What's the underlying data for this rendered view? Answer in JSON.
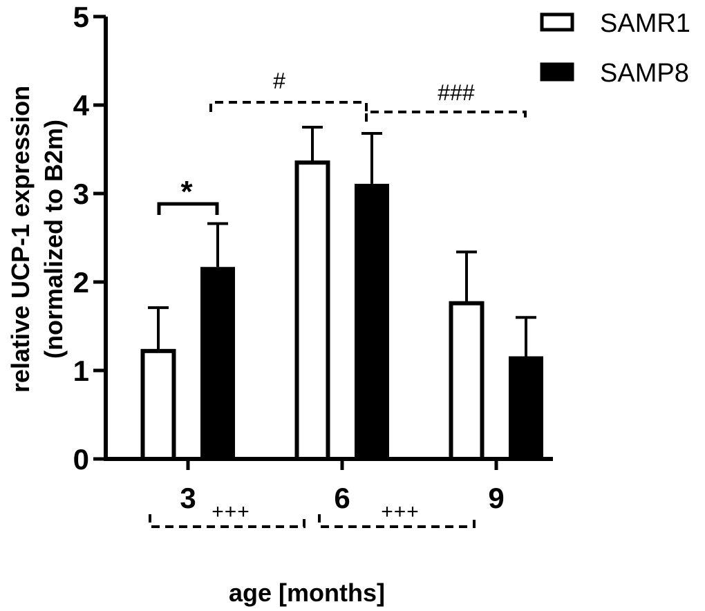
{
  "chart_data": {
    "type": "bar",
    "title": "",
    "xlabel": "age [months]",
    "ylabel": "relative UCP-1 expression",
    "ylabel_line2": "(normalized to B2m)",
    "categories": [
      "3",
      "6",
      "9"
    ],
    "ylim": [
      0,
      5
    ],
    "yticks": [
      "0",
      "1",
      "2",
      "3",
      "4",
      "5"
    ],
    "grid": false,
    "legend_position": "top-right",
    "series": [
      {
        "name": "SAMR1",
        "fill": "#ffffff",
        "stroke": "#000000",
        "values": [
          1.22,
          3.35,
          1.76
        ],
        "errors": [
          0.49,
          0.4,
          0.58
        ]
      },
      {
        "name": "SAMP8",
        "fill": "#000000",
        "stroke": "#000000",
        "values": [
          2.17,
          3.11,
          1.16
        ],
        "errors": [
          0.49,
          0.57,
          0.44
        ]
      }
    ],
    "annotations": {
      "star": {
        "label": "*",
        "between": "SAMR1 vs SAMP8 at 3 months"
      },
      "hash": {
        "label": "#",
        "between": "SAMP8 3 vs 6 months"
      },
      "triple_hash": {
        "label": "###",
        "between": "SAMP8 6 vs 9 months"
      },
      "plus_3_6": {
        "label": "+++",
        "between": "SAMR1 3 vs 6 months"
      },
      "plus_6_9": {
        "label": "+++",
        "between": "SAMR1 6 vs 9 months"
      }
    }
  }
}
